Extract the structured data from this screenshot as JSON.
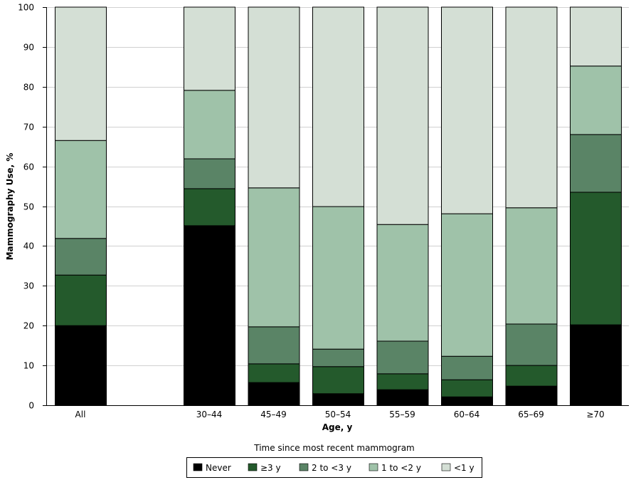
{
  "chart_data": {
    "type": "bar",
    "stacked": true,
    "xlabel": "Age, y",
    "ylabel": "Mammography Use, %",
    "ylim": [
      0,
      100
    ],
    "yticks": [
      0,
      10,
      20,
      30,
      40,
      50,
      60,
      70,
      80,
      90,
      100
    ],
    "grid": "horizontal",
    "categories": [
      "All",
      "30–44",
      "45–49",
      "50–54",
      "55–59",
      "60–64",
      "65–69",
      "≥70"
    ],
    "legend_title": "Time since most recent mammogram",
    "legend_position": "bottom",
    "series": [
      {
        "name": "Never",
        "color": "#000000",
        "values": [
          20.0,
          45.1,
          5.7,
          2.9,
          3.9,
          2.1,
          4.8,
          20.2
        ]
      },
      {
        "name": "≥3 y",
        "color": "#245a2c",
        "values": [
          12.7,
          9.3,
          4.7,
          6.8,
          4.0,
          4.3,
          5.2,
          33.3
        ]
      },
      {
        "name": "2 to <3 y",
        "color": "#5a8466",
        "values": [
          9.2,
          7.5,
          9.3,
          4.4,
          8.2,
          5.9,
          10.4,
          14.5
        ]
      },
      {
        "name": "1 to <2 y",
        "color": "#9fc2a9",
        "values": [
          24.6,
          17.2,
          34.9,
          35.8,
          29.3,
          35.8,
          29.2,
          17.2
        ]
      },
      {
        "name": "<1 y",
        "color": "#d4dfd5",
        "values": [
          33.5,
          20.9,
          45.4,
          50.1,
          54.6,
          51.9,
          50.4,
          14.8
        ]
      }
    ]
  }
}
